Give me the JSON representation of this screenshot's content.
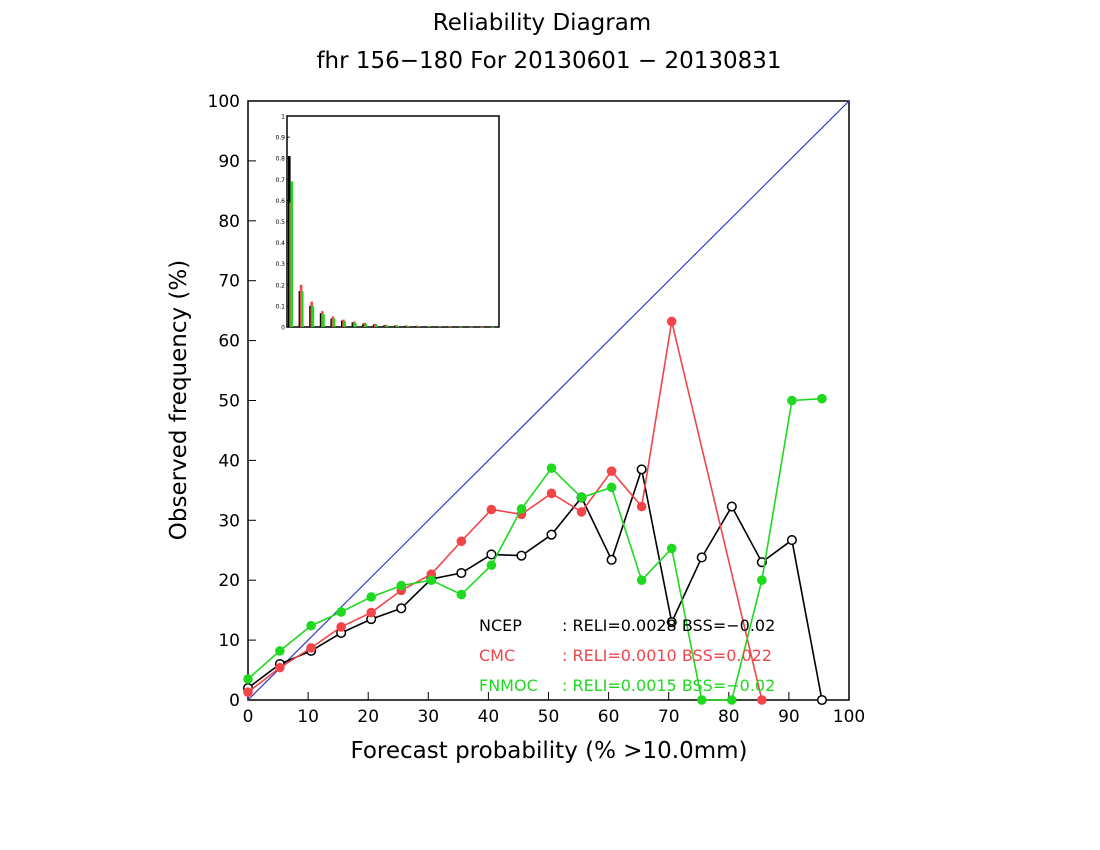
{
  "chart_data": {
    "type": "line",
    "title": "Reliability Diagram",
    "subtitle": "fhr 156−180 For 20130601 − 20130831",
    "xlabel": "Forecast probability (% >10.0mm)",
    "ylabel": "Observed frequency (%)",
    "xlim": [
      0,
      100
    ],
    "ylim": [
      0,
      100
    ],
    "x_ticks": [
      "0",
      "10",
      "20",
      "30",
      "40",
      "50",
      "60",
      "70",
      "80",
      "90",
      "100"
    ],
    "y_ticks": [
      "0",
      "10",
      "20",
      "30",
      "40",
      "50",
      "60",
      "70",
      "80",
      "90",
      "100"
    ],
    "grid": false,
    "diagonal": {
      "from": [
        0,
        0
      ],
      "to": [
        100,
        100
      ],
      "color": "#2b3fc2"
    },
    "series": [
      {
        "name": "NCEP",
        "color": "#000000",
        "marker": "open-circle",
        "x": [
          0,
          5.3,
          10.5,
          15.5,
          20.5,
          25.5,
          30.5,
          35.5,
          40.5,
          45.5,
          50.5,
          55.5,
          60.5,
          65.5,
          70.5,
          75.5,
          80.5,
          85.5,
          90.5,
          95.5
        ],
        "y": [
          2.0,
          6.0,
          8.2,
          11.2,
          13.5,
          15.3,
          20.2,
          21.2,
          24.3,
          24.1,
          27.6,
          33.8,
          23.4,
          38.5,
          13.0,
          23.8,
          32.3,
          23.0,
          26.7,
          0
        ]
      },
      {
        "name": "CMC",
        "color": "#f2454a",
        "marker": "filled-circle",
        "x": [
          0,
          5.3,
          10.5,
          15.5,
          20.5,
          25.5,
          30.5,
          35.5,
          40.5,
          45.5,
          50.5,
          55.5,
          60.5,
          65.5,
          70.5,
          85.5
        ],
        "y": [
          1.3,
          5.4,
          8.7,
          12.2,
          14.6,
          18.3,
          21.0,
          26.5,
          31.8,
          31.0,
          34.5,
          31.4,
          38.2,
          32.3,
          63.2,
          0
        ]
      },
      {
        "name": "FNMOC",
        "color": "#1fd91f",
        "marker": "filled-circle",
        "x": [
          0,
          5.3,
          10.5,
          15.5,
          20.5,
          25.5,
          30.5,
          35.5,
          40.5,
          45.5,
          50.5,
          55.5,
          60.5,
          65.5,
          70.5,
          75.5,
          80.5,
          85.5,
          90.5,
          95.5
        ],
        "y": [
          3.5,
          8.2,
          12.4,
          14.7,
          17.2,
          19.1,
          20.0,
          17.6,
          22.5,
          31.9,
          38.7,
          33.8,
          35.5,
          20.0,
          25.3,
          0,
          0,
          20.0,
          50.0,
          50.3
        ]
      }
    ],
    "legend": [
      {
        "name": "NCEP",
        "stats": ": RELI=0.0028 BSS=−0.02",
        "color": "#000000"
      },
      {
        "name": "CMC",
        "stats": ": RELI=0.0010 BSS=0.022",
        "color": "#f2454a"
      },
      {
        "name": "FNMOC",
        "stats": ": RELI=0.0015 BSS=−0.02",
        "color": "#1fd91f"
      }
    ],
    "legend_position": "bottom-right",
    "inset": {
      "type": "bar",
      "position": "top-left",
      "ylim": [
        0,
        1
      ],
      "y_ticks": [
        "0",
        "0.1",
        "0.2",
        "0.3",
        "0.4",
        "0.5",
        "0.6",
        "0.7",
        "0.8",
        "0.9",
        "1"
      ],
      "series": [
        {
          "name": "NCEP",
          "color": "#000000",
          "values": [
            0.81,
            0.17,
            0.1,
            0.065,
            0.04,
            0.03,
            0.022,
            0.016,
            0.012,
            0.009,
            0.007,
            0.006,
            0.005,
            0.004,
            0.003,
            0.002,
            0.0015,
            0.001,
            0.001,
            0.0005
          ]
        },
        {
          "name": "CMC",
          "color": "#f2454a",
          "values": [
            0.59,
            0.2,
            0.12,
            0.075,
            0.05,
            0.035,
            0.026,
            0.02,
            0.015,
            0.011,
            0.009,
            0.007,
            0.006,
            0.005,
            0.004,
            0.003,
            0.002,
            0.0015,
            0.001,
            0.0005
          ]
        },
        {
          "name": "FNMOC",
          "color": "#1fd91f",
          "values": [
            0.69,
            0.17,
            0.1,
            0.06,
            0.04,
            0.028,
            0.02,
            0.015,
            0.011,
            0.008,
            0.006,
            0.005,
            0.004,
            0.003,
            0.002,
            0.0015,
            0.001,
            0.001,
            0.0005,
            0.0005
          ]
        }
      ]
    }
  }
}
